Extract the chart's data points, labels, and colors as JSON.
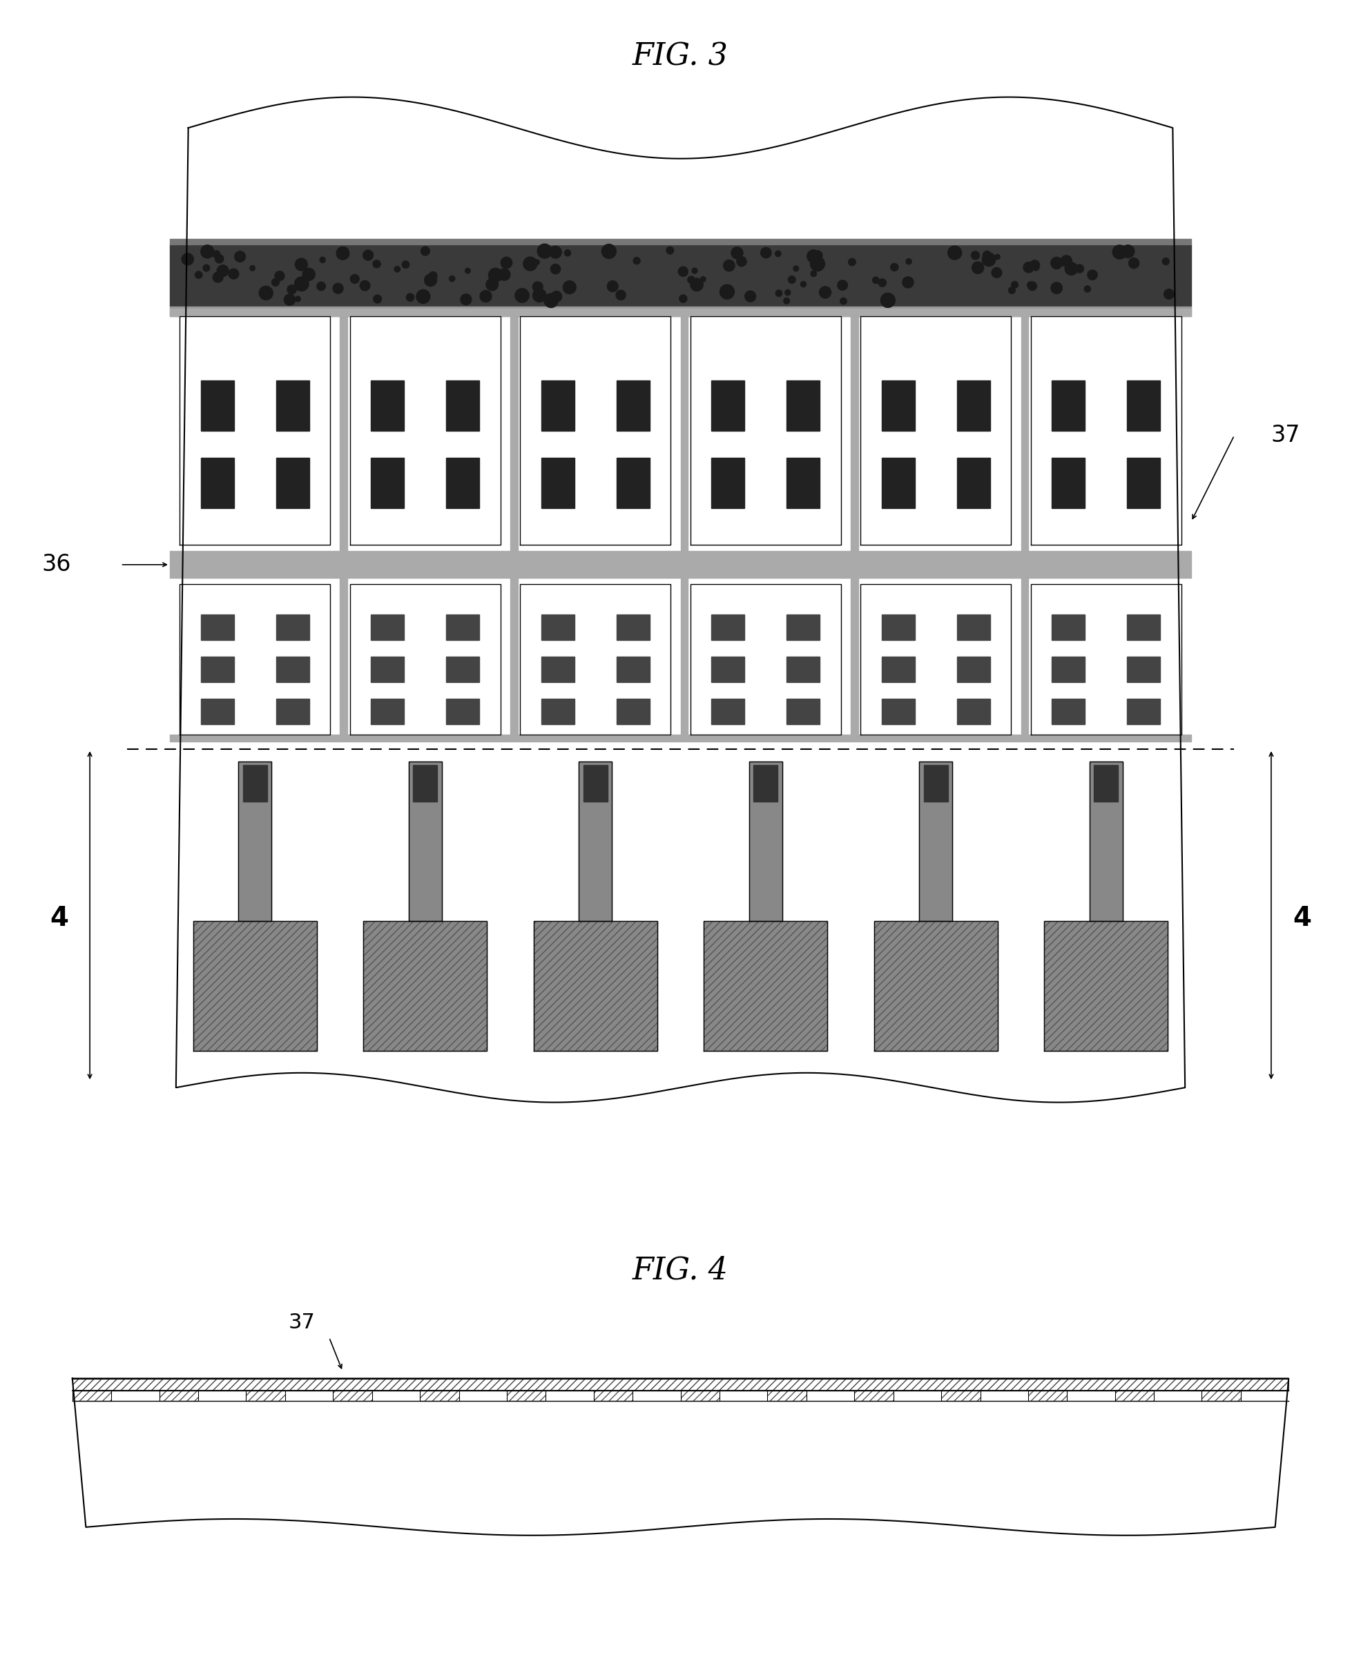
{
  "fig3_title": "FIG. 3",
  "fig4_title": "FIG. 4",
  "label_36": "36",
  "label_37": "37",
  "label_4_left": "4",
  "label_4_right": "4",
  "bg_color": "#ffffff",
  "gray_dark": "#555555",
  "gray_mid": "#aaaaaa",
  "gray_light": "#cccccc",
  "black": "#000000",
  "white": "#ffffff",
  "hatch_color": "#333333"
}
